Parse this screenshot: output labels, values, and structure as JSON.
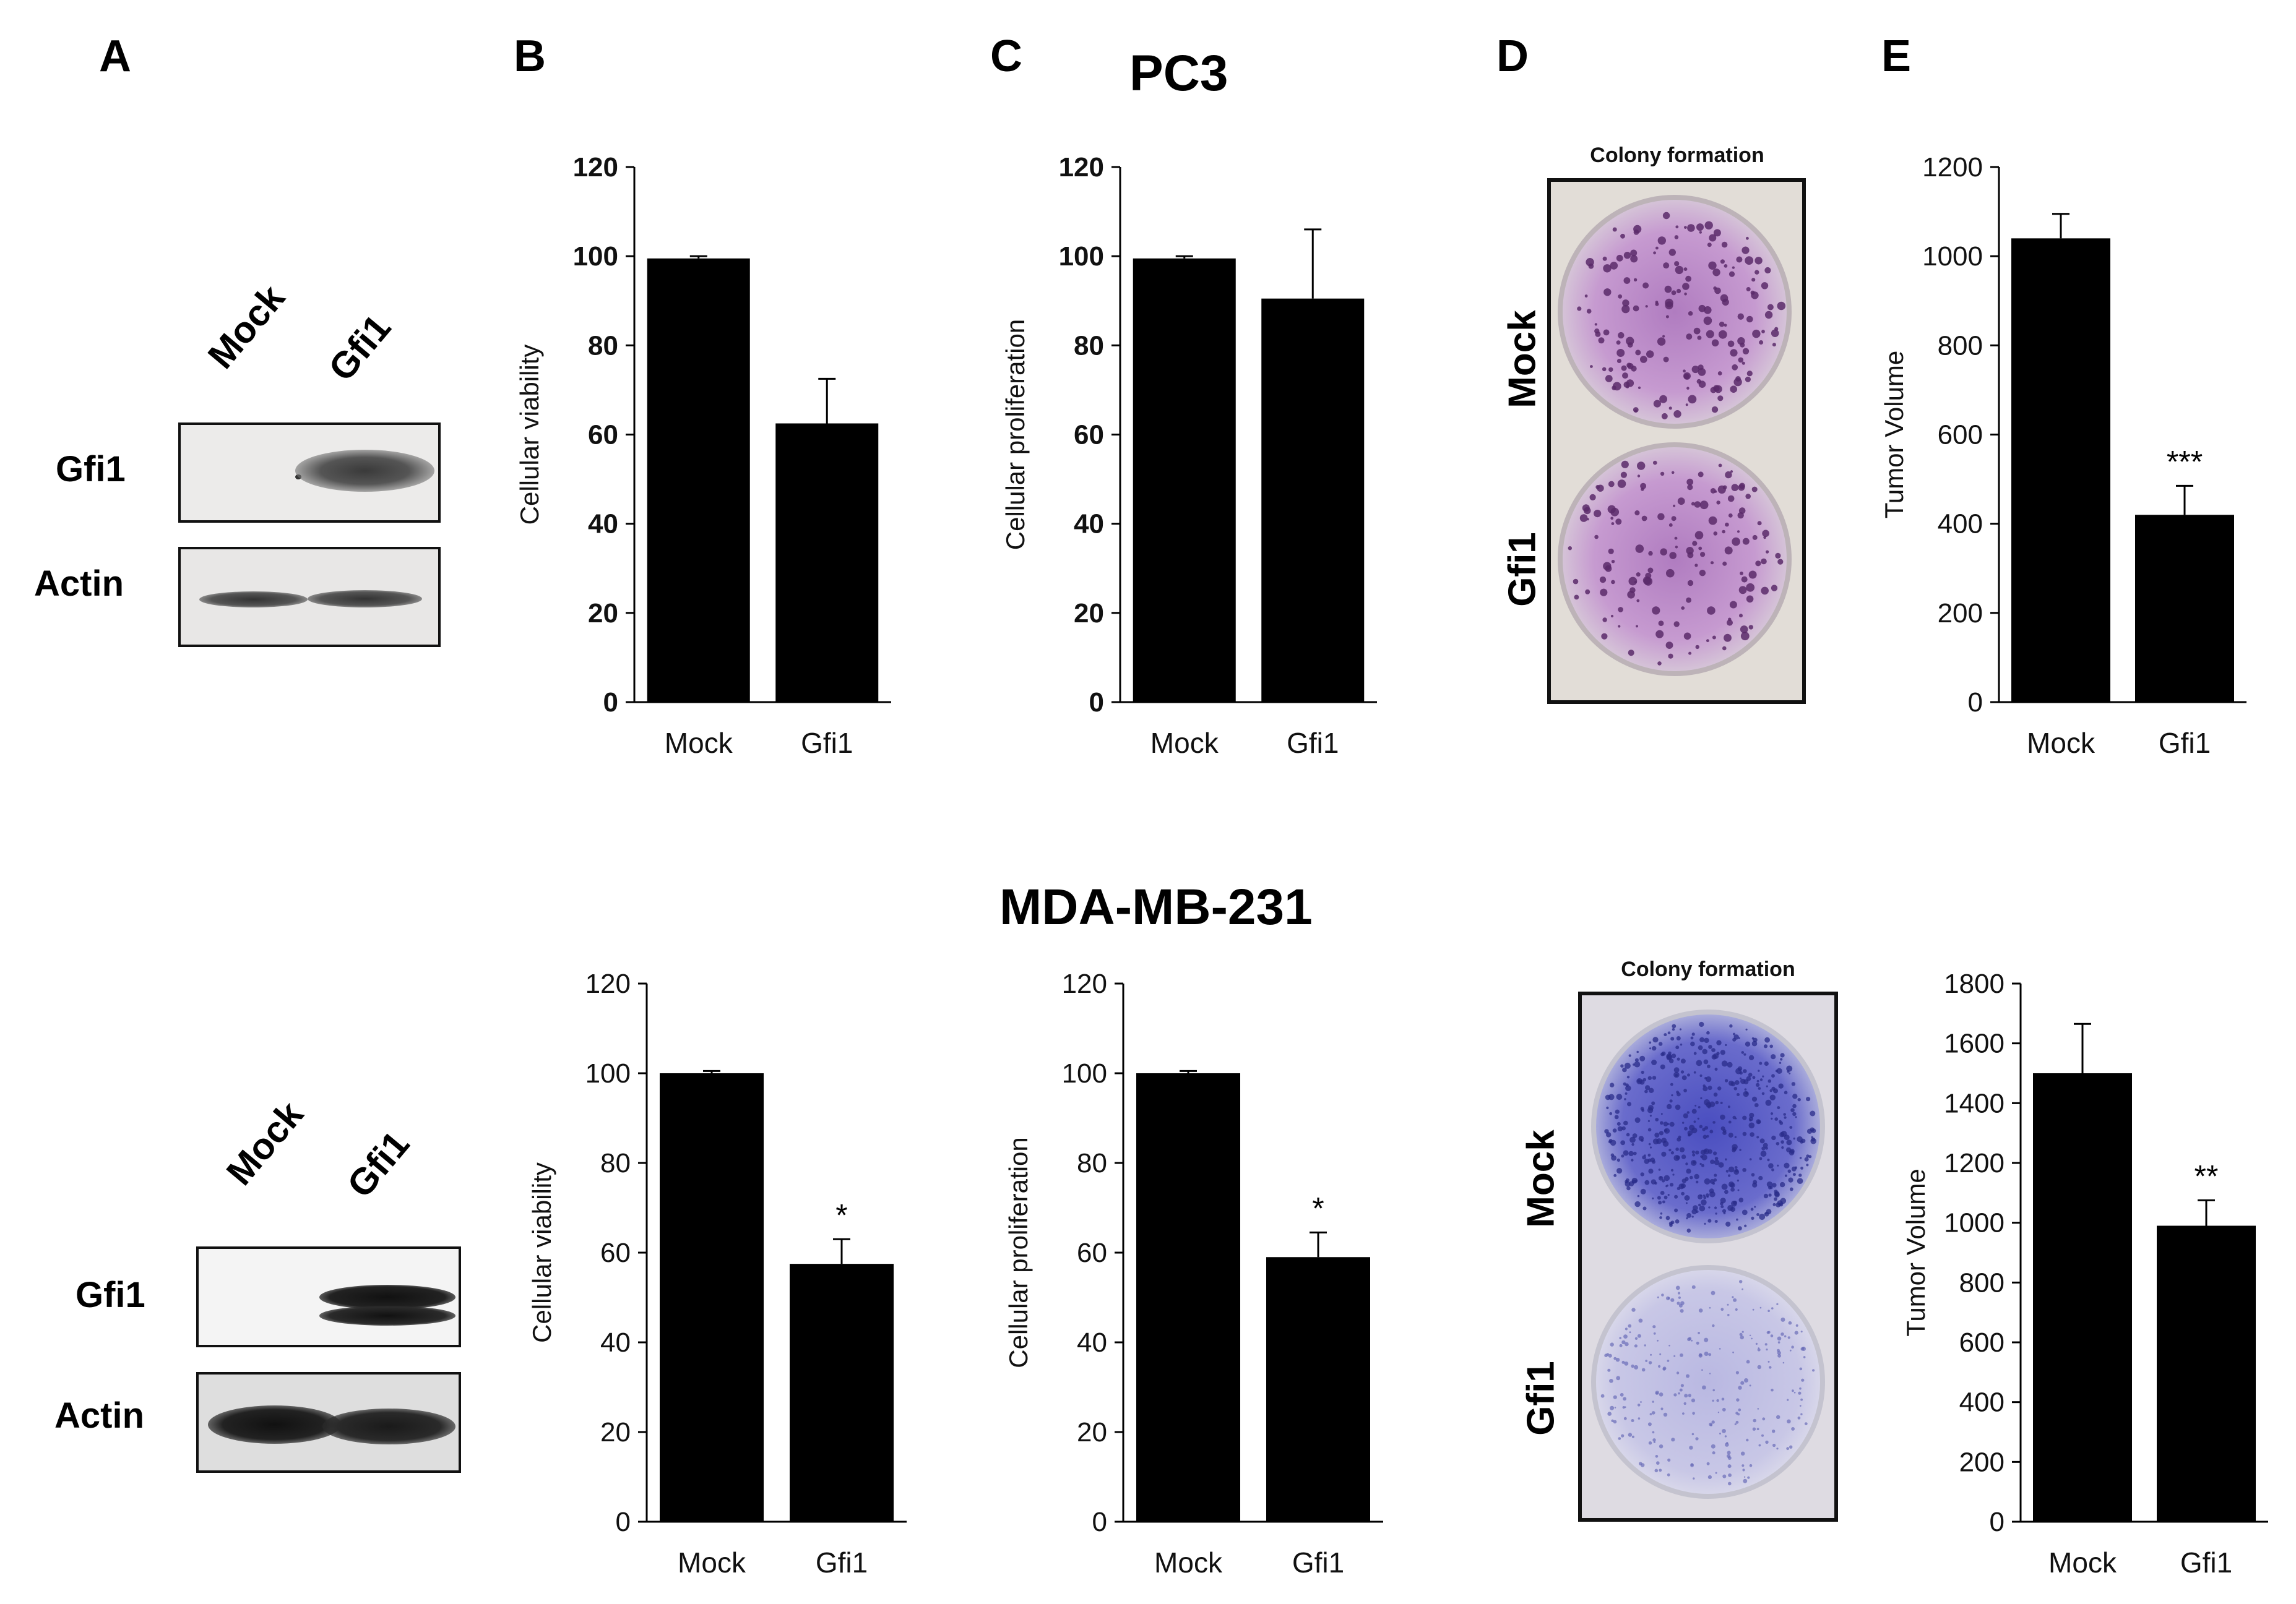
{
  "panel_letters": [
    "A",
    "B",
    "C",
    "D",
    "E"
  ],
  "titles": {
    "top": "PC3",
    "bottom": "MDA-MB-231"
  },
  "western_blot": {
    "lanes": [
      "Mock",
      "Gfi1"
    ],
    "rows": [
      "Gfi1",
      "Actin"
    ]
  },
  "colony": {
    "title": "Colony formation",
    "rows": [
      "Mock",
      "Gfi1"
    ]
  },
  "chart_data": [
    {
      "id": "pc3-viability",
      "type": "bar",
      "categories": [
        "Mock",
        "Gfi1"
      ],
      "values": [
        99.5,
        62.5
      ],
      "errors": [
        0.5,
        10
      ],
      "annotations": [
        "",
        ""
      ],
      "ylabel": "Cellular viability",
      "ylim": [
        0,
        120
      ],
      "yticks": [
        0,
        20,
        40,
        60,
        80,
        100,
        120
      ],
      "bold_ticks": true
    },
    {
      "id": "pc3-proliferation",
      "type": "bar",
      "categories": [
        "Mock",
        "Gfi1"
      ],
      "values": [
        99.5,
        90.5
      ],
      "errors": [
        0.5,
        15.5
      ],
      "annotations": [
        "",
        ""
      ],
      "ylabel": "Cellular proliferation",
      "ylim": [
        0,
        120
      ],
      "yticks": [
        0,
        20,
        40,
        60,
        80,
        100,
        120
      ],
      "bold_ticks": true
    },
    {
      "id": "pc3-tumor",
      "type": "bar",
      "categories": [
        "Mock",
        "Gfi1"
      ],
      "values": [
        1040,
        420
      ],
      "errors": [
        55,
        65
      ],
      "annotations": [
        "",
        "***"
      ],
      "ylabel": "Tumor Volume",
      "ylim": [
        0,
        1200
      ],
      "yticks": [
        0,
        200,
        400,
        600,
        800,
        1000,
        1200
      ],
      "bold_ticks": false
    },
    {
      "id": "mda-viability",
      "type": "bar",
      "categories": [
        "Mock",
        "Gfi1"
      ],
      "values": [
        100,
        57.5
      ],
      "errors": [
        0.5,
        5.5
      ],
      "annotations": [
        "",
        "*"
      ],
      "ylabel": "Cellular viability",
      "ylim": [
        0,
        120
      ],
      "yticks": [
        0,
        20,
        40,
        60,
        80,
        100,
        120
      ],
      "bold_ticks": false
    },
    {
      "id": "mda-proliferation",
      "type": "bar",
      "categories": [
        "Mock",
        "Gfi1"
      ],
      "values": [
        100,
        59
      ],
      "errors": [
        0.5,
        5.5
      ],
      "annotations": [
        "",
        "*"
      ],
      "ylabel": "Cellular proliferation",
      "ylim": [
        0,
        120
      ],
      "yticks": [
        0,
        20,
        40,
        60,
        80,
        100,
        120
      ],
      "bold_ticks": false
    },
    {
      "id": "mda-tumor",
      "type": "bar",
      "categories": [
        "Mock",
        "Gfi1"
      ],
      "values": [
        1500,
        990
      ],
      "errors": [
        165,
        85
      ],
      "annotations": [
        "",
        "**"
      ],
      "ylabel": "Tumor Volume",
      "ylim": [
        0,
        1800
      ],
      "yticks": [
        0,
        200,
        400,
        600,
        800,
        1000,
        1200,
        1400,
        1600,
        1800
      ],
      "bold_ticks": false
    }
  ]
}
